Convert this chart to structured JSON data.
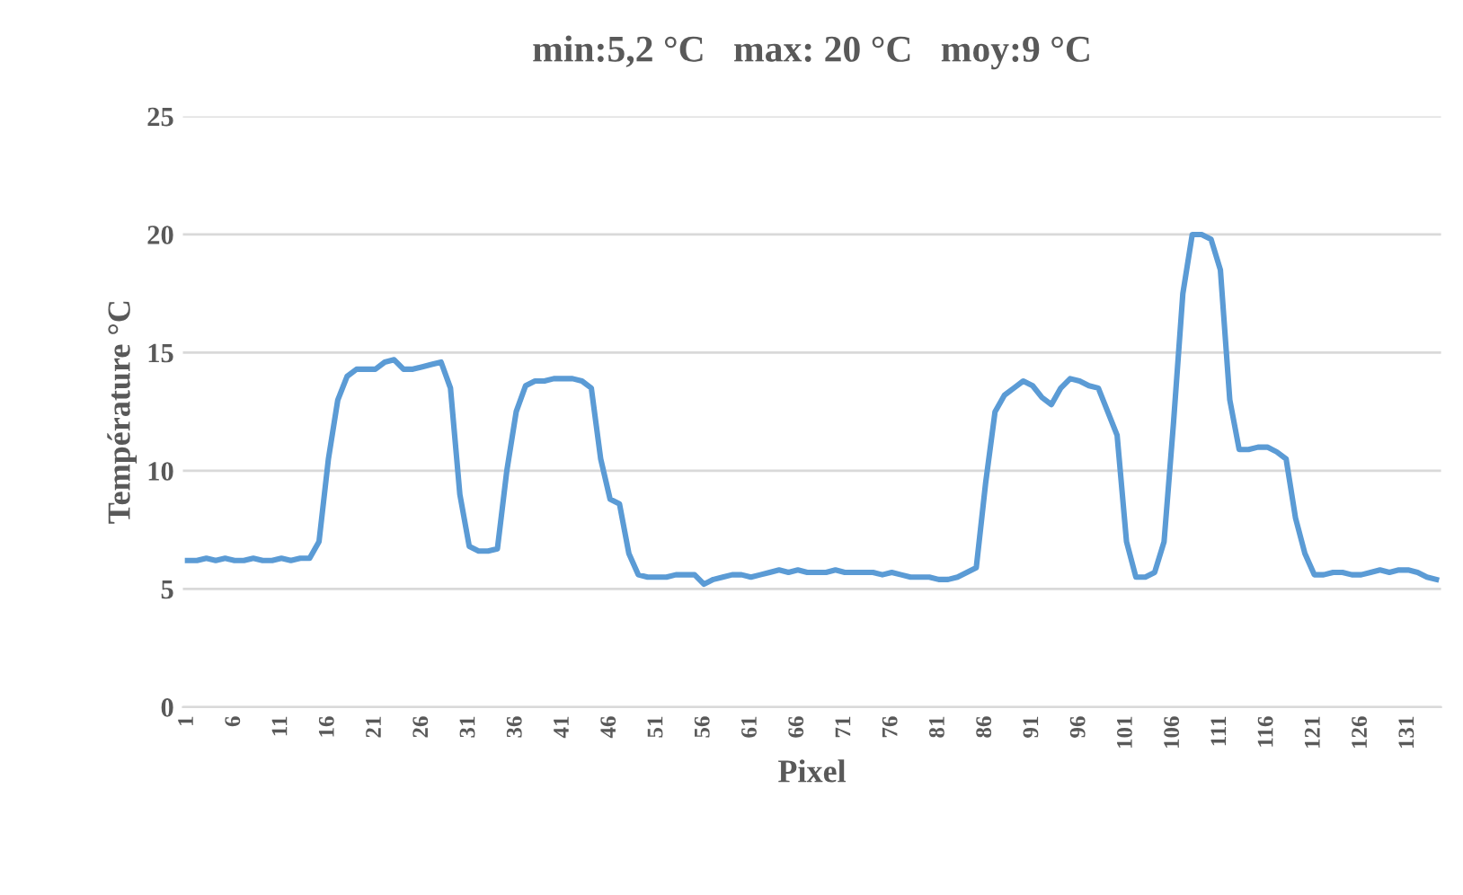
{
  "chart_data": {
    "type": "line",
    "title": "min:5,2 °C   max: 20 °C   moy:9 °C",
    "xlabel": "Pixel",
    "ylabel": "Température °C",
    "categories": [
      "1",
      null,
      null,
      null,
      null,
      "6",
      null,
      null,
      null,
      null,
      "11",
      null,
      null,
      null,
      null,
      "16",
      null,
      null,
      null,
      null,
      "21",
      null,
      null,
      null,
      null,
      "26",
      null,
      null,
      null,
      null,
      "31",
      null,
      null,
      null,
      null,
      "36",
      null,
      null,
      null,
      null,
      "41",
      null,
      null,
      null,
      null,
      "46",
      null,
      null,
      null,
      null,
      "51",
      null,
      null,
      null,
      null,
      "56",
      null,
      null,
      null,
      null,
      "61",
      null,
      null,
      null,
      null,
      "66",
      null,
      null,
      null,
      null,
      "71",
      null,
      null,
      null,
      null,
      "76",
      null,
      null,
      null,
      null,
      "81",
      null,
      null,
      null,
      null,
      "86",
      null,
      null,
      null,
      null,
      "91",
      null,
      null,
      null,
      null,
      "96",
      null,
      null,
      null,
      null,
      "101",
      null,
      null,
      null,
      null,
      "106",
      null,
      null,
      null,
      null,
      "111",
      null,
      null,
      null,
      null,
      "116",
      null,
      null,
      null,
      null,
      "121",
      null,
      null,
      null,
      null,
      "126",
      null,
      null,
      null,
      null,
      "131",
      null,
      null,
      null
    ],
    "series": [
      {
        "color": "#5b9bd5",
        "values": [
          6.2,
          6.2,
          6.3,
          6.2,
          6.3,
          6.2,
          6.2,
          6.3,
          6.2,
          6.2,
          6.3,
          6.2,
          6.3,
          6.3,
          7.0,
          10.5,
          13.0,
          14.0,
          14.3,
          14.3,
          14.3,
          14.6,
          14.7,
          14.3,
          14.3,
          14.4,
          14.5,
          14.6,
          13.5,
          9.0,
          6.8,
          6.6,
          6.6,
          6.7,
          10.0,
          12.5,
          13.6,
          13.8,
          13.8,
          13.9,
          13.9,
          13.9,
          13.8,
          13.5,
          10.5,
          8.8,
          8.6,
          6.5,
          5.6,
          5.5,
          5.5,
          5.5,
          5.6,
          5.6,
          5.6,
          5.2,
          5.4,
          5.5,
          5.6,
          5.6,
          5.5,
          5.6,
          5.7,
          5.8,
          5.7,
          5.8,
          5.7,
          5.7,
          5.7,
          5.8,
          5.7,
          5.7,
          5.7,
          5.7,
          5.6,
          5.7,
          5.6,
          5.5,
          5.5,
          5.5,
          5.4,
          5.4,
          5.5,
          5.7,
          5.9,
          9.5,
          12.5,
          13.2,
          13.5,
          13.8,
          13.6,
          13.1,
          12.8,
          13.5,
          13.9,
          13.8,
          13.6,
          13.5,
          12.5,
          11.5,
          7.0,
          5.5,
          5.5,
          5.7,
          7.0,
          12.0,
          17.5,
          20.0,
          20.0,
          19.8,
          18.5,
          13.0,
          10.9,
          10.9,
          11.0,
          11.0,
          10.8,
          10.5,
          8.0,
          6.5,
          5.6,
          5.6,
          5.7,
          5.7,
          5.6,
          5.6,
          5.7,
          5.8,
          5.7,
          5.8,
          5.8,
          5.7,
          5.5,
          5.4
        ]
      }
    ],
    "ylim": [
      0,
      25
    ],
    "yticks": [
      0,
      5,
      10,
      15,
      20,
      25
    ],
    "grid": "y",
    "legend": false,
    "marker": "none",
    "line_style": "solid"
  }
}
